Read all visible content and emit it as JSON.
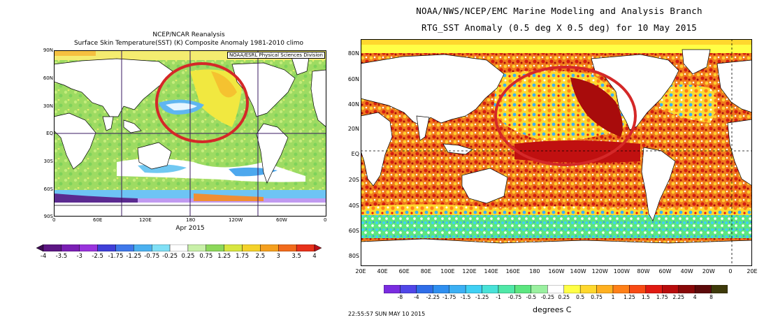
{
  "left_map": {
    "title_line1": "NCEP/NCAR Reanalysis",
    "title_line2": "Surface Skin Temperature(SST) (K) Composite Anomaly 1981-2010 climo",
    "credit": "NOAA/ESRL Physical Sciences Division",
    "footer": "Apr 2015",
    "y_ticks": [
      "90N",
      "60N",
      "30N",
      "EQ",
      "30S",
      "60S",
      "90S"
    ],
    "x_ticks": [
      "0",
      "60E",
      "120E",
      "180",
      "120W",
      "60W",
      "0"
    ],
    "colorbar": {
      "labels": [
        "-4",
        "-3.5",
        "-3",
        "-2.5",
        "-1.75",
        "-1.25",
        "-0.75",
        "-0.25",
        "0.25",
        "0.75",
        "1.25",
        "1.75",
        "2.5",
        "3",
        "3.5",
        "4"
      ],
      "colors": [
        "#3d0a52",
        "#5c1683",
        "#7a1fb4",
        "#9933dd",
        "#3f3fd8",
        "#3f78ea",
        "#4bb1f0",
        "#80e0f6",
        "#ffffff",
        "#c8f0a8",
        "#8cd85a",
        "#d8e640",
        "#f4d22a",
        "#f5a01f",
        "#f26b1c",
        "#e8311a",
        "#b8101a"
      ]
    }
  },
  "right_map": {
    "title_line1": "NOAA/NWS/NCEP/EMC Marine Modeling and Analysis Branch",
    "title_line2": "RTG_SST Anomaly (0.5 deg X 0.5 deg) for 10 May 2015",
    "y_ticks": [
      "80N",
      "60N",
      "40N",
      "20N",
      "EQ",
      "20S",
      "40S",
      "60S",
      "80S"
    ],
    "x_ticks": [
      "20E",
      "40E",
      "60E",
      "80E",
      "100E",
      "120E",
      "140E",
      "160E",
      "180",
      "160W",
      "140W",
      "120W",
      "100W",
      "80W",
      "60W",
      "40W",
      "20W",
      "0",
      "20E"
    ],
    "colorbar": {
      "labels": [
        "-8",
        "-4",
        "-2.25",
        "-1.75",
        "-1.5",
        "-1.25",
        "-1",
        "-0.75",
        "-0.5",
        "-0.25",
        "0.25",
        "0.5",
        "0.75",
        "1",
        "1.25",
        "1.5",
        "1.75",
        "2.25",
        "4",
        "8"
      ],
      "colors": [
        "#7a2ce0",
        "#5046e8",
        "#2f6de8",
        "#2f8ff0",
        "#3cb0f4",
        "#3fd0f4",
        "#48e2d8",
        "#50e8a8",
        "#5ce680",
        "#9af0a0",
        "#ffffff",
        "#ffff46",
        "#ffd82e",
        "#ffb020",
        "#ff8018",
        "#f84a14",
        "#e01a12",
        "#b80c0c",
        "#880808",
        "#5c0a0a",
        "#3e3a0a"
      ],
      "unit": "degrees C"
    },
    "timestamp": "22:55:57  SUN MAY 10 2015"
  }
}
